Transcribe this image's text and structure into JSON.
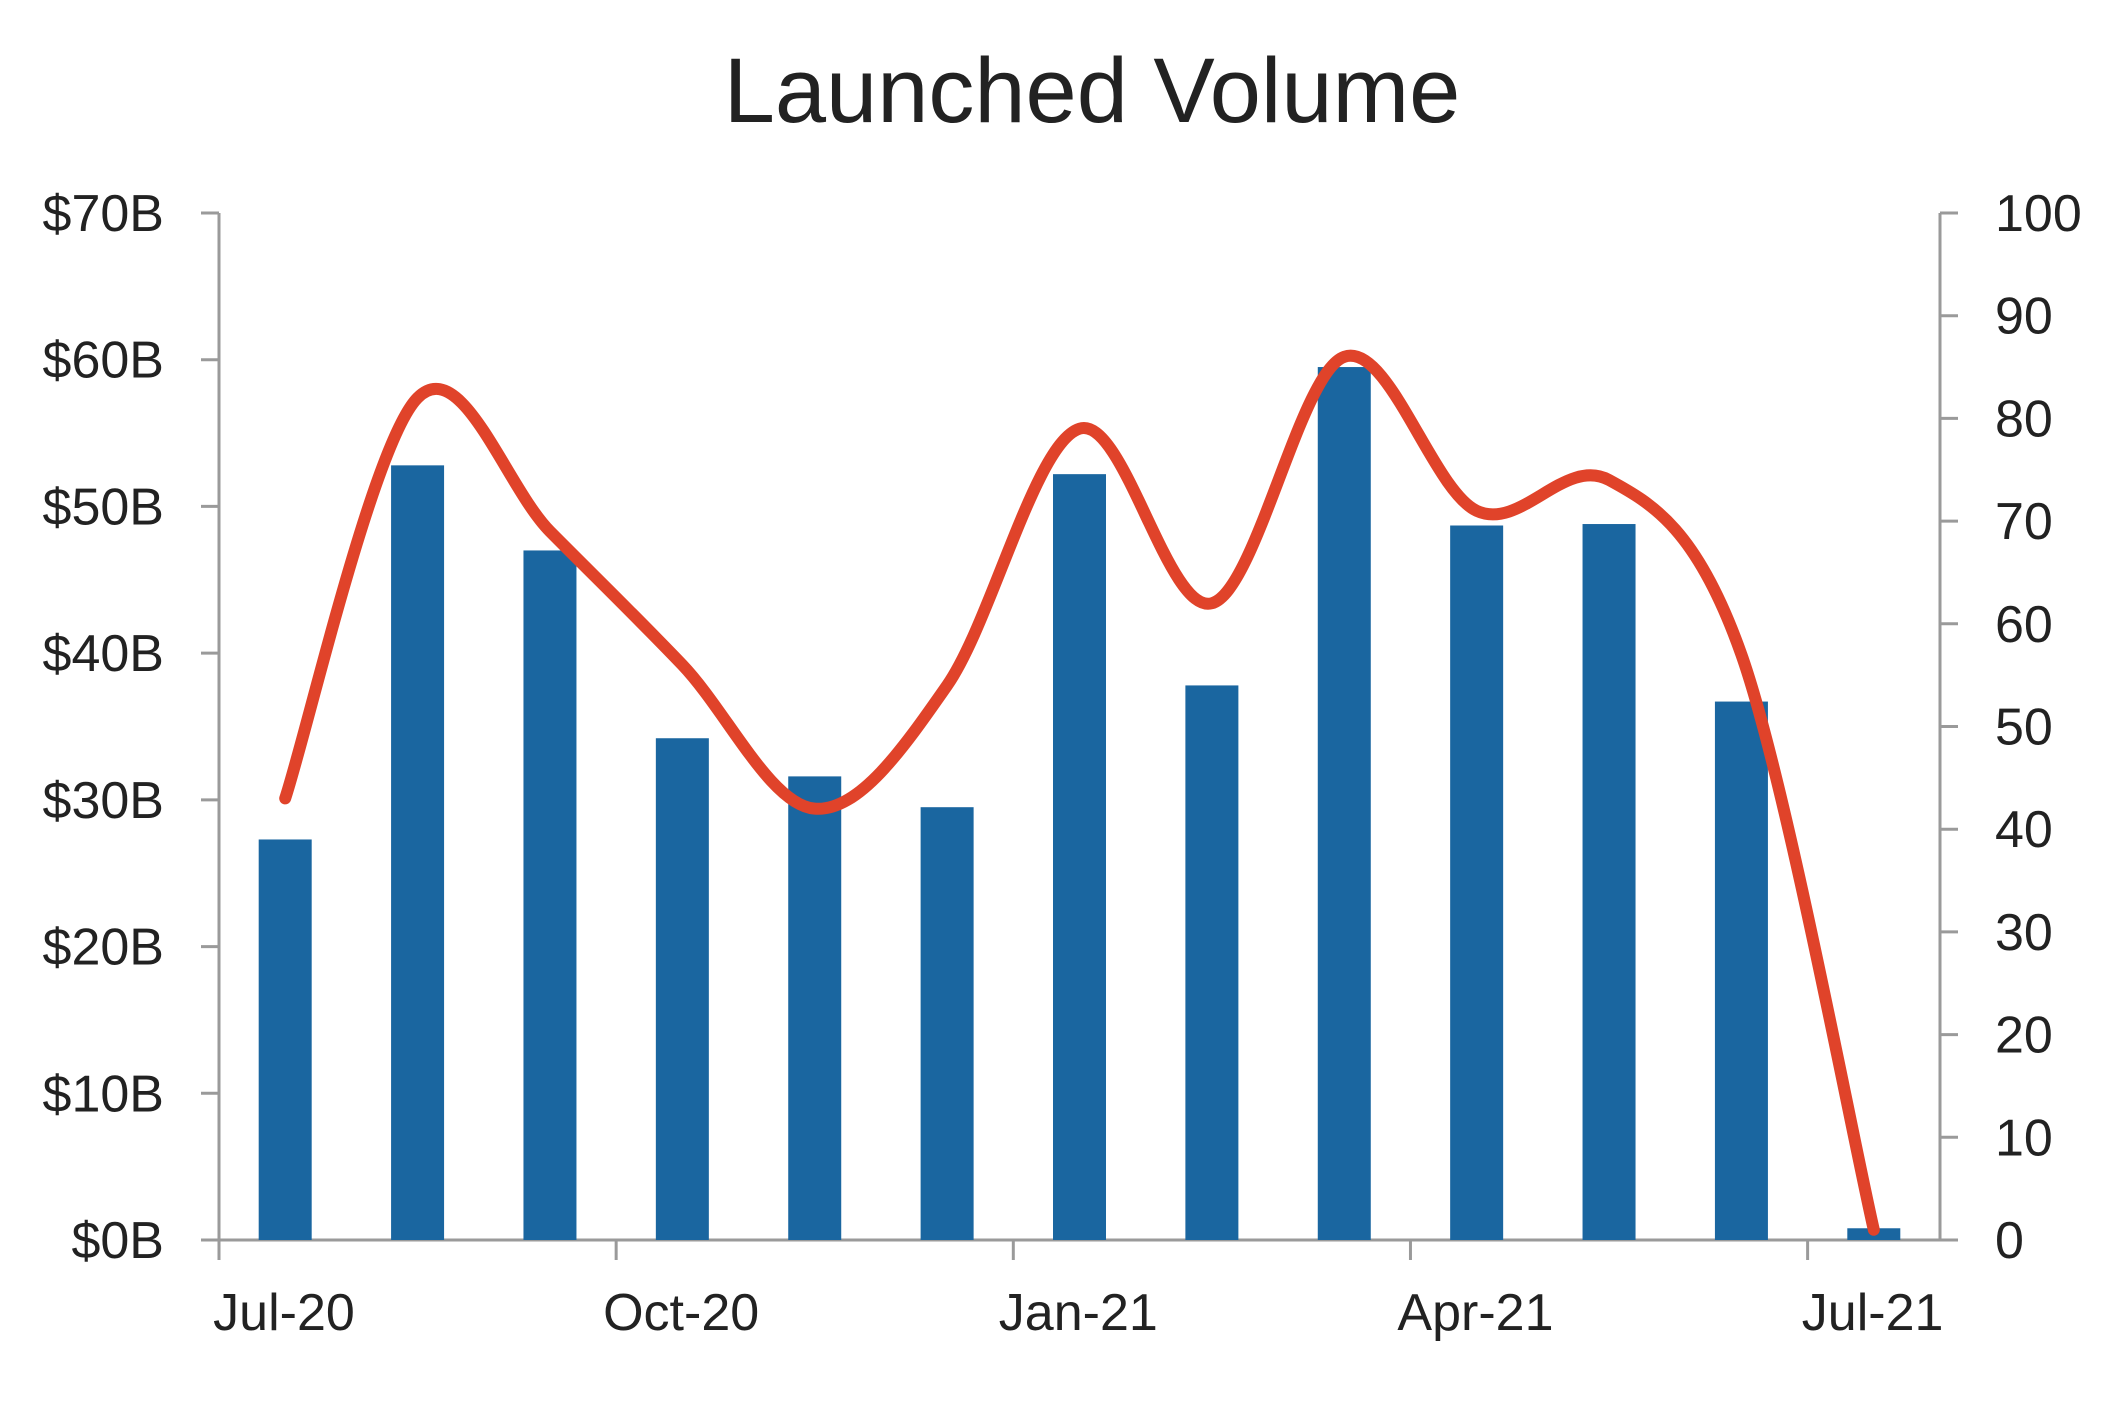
{
  "chart_data": {
    "type": "bar",
    "title": "Launched Volume",
    "x_tick_labels": [
      "Jul-20",
      "Oct-20",
      "Jan-21",
      "Apr-21",
      "Jul-21"
    ],
    "categories": [
      "Jul-20",
      "Aug-20",
      "Sep-20",
      "Oct-20",
      "Nov-20",
      "Dec-20",
      "Jan-21",
      "Feb-21",
      "Mar-21",
      "Apr-21",
      "May-21",
      "Jun-21",
      "Jul-21"
    ],
    "series": [
      {
        "type": "bar",
        "axis": "left",
        "color": "#1a66a0",
        "values": [
          27.3,
          52.8,
          47.0,
          34.2,
          31.6,
          29.5,
          52.2,
          37.8,
          59.5,
          48.7,
          48.8,
          36.7,
          0.8
        ]
      },
      {
        "type": "line",
        "axis": "right",
        "smooth": true,
        "color": "#e0432a",
        "values": [
          43,
          82,
          69,
          56,
          42,
          54,
          79,
          62,
          86,
          71,
          74,
          57,
          1
        ]
      }
    ],
    "y_left": {
      "min": 0,
      "max": 70,
      "tick_labels": [
        "$0B",
        "$10B",
        "$20B",
        "$30B",
        "$40B",
        "$50B",
        "$60B",
        "$70B"
      ]
    },
    "y_right": {
      "min": 0,
      "max": 100,
      "tick_labels": [
        "0",
        "10",
        "20",
        "30",
        "40",
        "50",
        "60",
        "70",
        "80",
        "90",
        "100"
      ]
    },
    "grid": false,
    "legend": "none"
  }
}
